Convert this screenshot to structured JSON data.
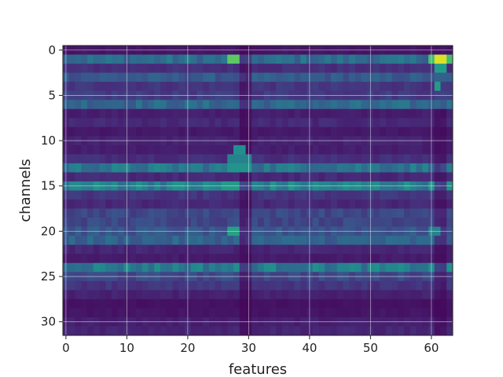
{
  "chart_data": {
    "type": "heatmap",
    "title": "",
    "xlabel": "features",
    "ylabel": "channels",
    "n_cols": 64,
    "n_rows": 32,
    "xlim": [
      -0.5,
      63.5
    ],
    "ylim": [
      31.5,
      -0.5
    ],
    "y_inverted": true,
    "colormap": "viridis",
    "value_range": [
      0,
      1
    ],
    "grid": true,
    "xticks": [
      0,
      10,
      20,
      30,
      40,
      50,
      60
    ],
    "yticks": [
      0,
      5,
      10,
      15,
      20,
      25,
      30
    ],
    "row_base_values": [
      0.06,
      0.36,
      0.14,
      0.28,
      0.16,
      0.18,
      0.34,
      0.09,
      0.12,
      0.07,
      0.1,
      0.09,
      0.14,
      0.4,
      0.12,
      0.45,
      0.16,
      0.12,
      0.22,
      0.22,
      0.27,
      0.32,
      0.11,
      0.08,
      0.42,
      0.22,
      0.16,
      0.1,
      0.05,
      0.06,
      0.09,
      0.11
    ],
    "hotspots": [
      {
        "row": 1,
        "cols": [
          27,
          28
        ],
        "value": 0.75
      },
      {
        "row": 1,
        "cols": [
          61,
          62
        ],
        "value": 0.95
      },
      {
        "row": 1,
        "cols": [
          60,
          63
        ],
        "value": 0.7
      },
      {
        "row": 2,
        "cols": [
          61,
          62
        ],
        "value": 0.55
      },
      {
        "row": 4,
        "cols": [
          61,
          61
        ],
        "value": 0.55
      },
      {
        "row": 11,
        "cols": [
          28,
          29
        ],
        "value": 0.5
      },
      {
        "row": 12,
        "cols": [
          27,
          30
        ],
        "value": 0.45
      },
      {
        "row": 13,
        "cols": [
          27,
          30
        ],
        "value": 0.52
      },
      {
        "row": 15,
        "cols": [
          26,
          28
        ],
        "value": 0.55
      },
      {
        "row": 20,
        "cols": [
          27,
          28
        ],
        "value": 0.58
      },
      {
        "row": 20,
        "cols": [
          60,
          61
        ],
        "value": 0.45
      }
    ],
    "dark_columns": [
      {
        "cols": [
          29,
          30
        ],
        "rows": [
          0,
          31
        ],
        "factor": 0.45
      },
      {
        "cols": [
          61,
          62
        ],
        "rows": [
          7,
          31
        ],
        "factor": 0.5
      }
    ]
  }
}
